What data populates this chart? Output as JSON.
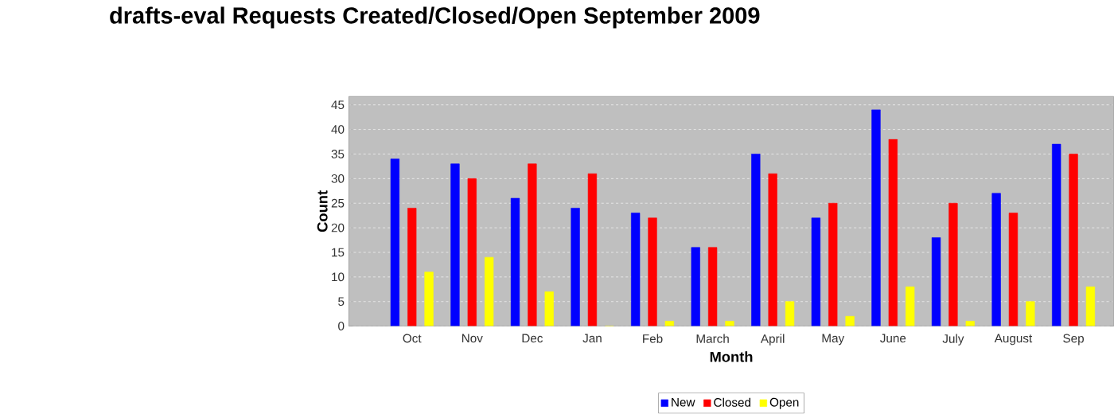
{
  "chart_data": {
    "type": "bar",
    "title": "drafts-eval Requests Created/Closed/Open September 2009",
    "xlabel": "Month",
    "ylabel": "Count",
    "categories": [
      "Oct",
      "Nov",
      "Dec",
      "Jan",
      "Feb",
      "March",
      "April",
      "May",
      "June",
      "July",
      "August",
      "Sep"
    ],
    "series": [
      {
        "name": "New",
        "color": "#0000ff",
        "values": [
          34,
          33,
          26,
          24,
          23,
          16,
          35,
          22,
          44,
          18,
          27,
          37
        ]
      },
      {
        "name": "Closed",
        "color": "#ff0000",
        "values": [
          24,
          30,
          33,
          31,
          22,
          16,
          31,
          25,
          38,
          25,
          23,
          35
        ]
      },
      {
        "name": "Open",
        "color": "#ffff00",
        "values": [
          11,
          14,
          7,
          0,
          1,
          1,
          5,
          2,
          8,
          1,
          5,
          8
        ]
      }
    ],
    "ylim": [
      0,
      46.7
    ],
    "yticks": [
      0,
      5,
      10,
      15,
      20,
      25,
      30,
      35,
      40,
      45
    ],
    "grid": "y",
    "legend": "bottom"
  }
}
